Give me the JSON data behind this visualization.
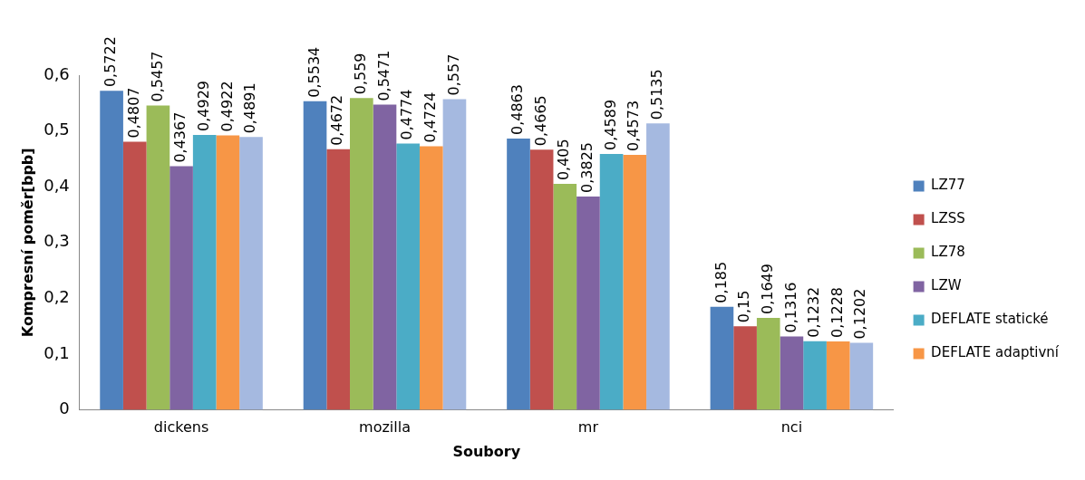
{
  "chart_data": {
    "type": "bar",
    "xlabel": "Soubory",
    "ylabel": "Kompresní poměr[bpb]",
    "categories": [
      "dickens",
      "mozilla",
      "mr",
      "nci"
    ],
    "series": [
      {
        "name": "LZ77",
        "color": "#4f81bd",
        "values": [
          0.5722,
          0.5534,
          0.4863,
          0.185
        ],
        "value_labels": [
          "0,5722",
          "0,5534",
          "0,4863",
          "0,185"
        ]
      },
      {
        "name": "LZSS",
        "color": "#c0504d",
        "values": [
          0.4807,
          0.4672,
          0.4665,
          0.15
        ],
        "value_labels": [
          "0,4807",
          "0,4672",
          "0,4665",
          "0,15"
        ]
      },
      {
        "name": "LZ78",
        "color": "#9bbb59",
        "values": [
          0.5457,
          0.559,
          0.405,
          0.1649
        ],
        "value_labels": [
          "0,5457",
          "0,559",
          "0,405",
          "0,1649"
        ]
      },
      {
        "name": "LZW",
        "color": "#8064a2",
        "values": [
          0.4367,
          0.5471,
          0.3825,
          0.1316
        ],
        "value_labels": [
          "0,4367",
          "0,5471",
          "0,3825",
          "0,1316"
        ]
      },
      {
        "name": "DEFLATE statické",
        "color": "#4bacc6",
        "values": [
          0.4929,
          0.4774,
          0.4589,
          0.1232
        ],
        "value_labels": [
          "0,4929",
          "0,4774",
          "0,4589",
          "0,1232"
        ]
      },
      {
        "name": "DEFLATE adaptivní",
        "color": "#f79646",
        "values": [
          0.4922,
          0.4724,
          0.4573,
          0.1228
        ],
        "value_labels": [
          "0,4922",
          "0,4724",
          "0,4573",
          "0,1228"
        ]
      },
      {
        "color": "#a5b9e0",
        "values": [
          0.4891,
          0.557,
          0.5135,
          0.1202
        ],
        "value_labels": [
          "0,4891",
          "0,557",
          "0,5135",
          "0,1202"
        ]
      }
    ],
    "ylim": [
      0,
      0.6
    ],
    "yticks": [
      {
        "value": 0,
        "label": "0"
      },
      {
        "value": 0.1,
        "label": "0,1"
      },
      {
        "value": 0.2,
        "label": "0,2"
      },
      {
        "value": 0.3,
        "label": "0,3"
      },
      {
        "value": 0.4,
        "label": "0,4"
      },
      {
        "value": 0.5,
        "label": "0,5"
      },
      {
        "value": 0.6,
        "label": "0,6"
      }
    ],
    "grid": false,
    "legend": "right"
  }
}
